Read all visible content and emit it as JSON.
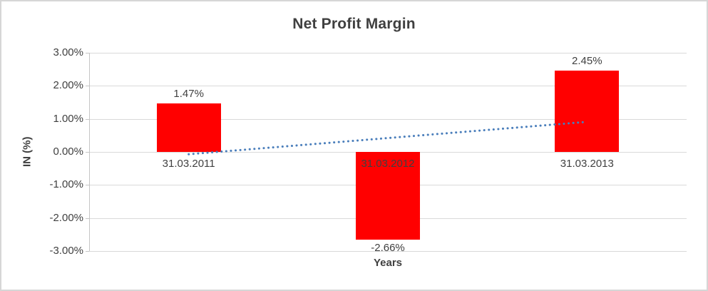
{
  "chart_data": {
    "type": "bar",
    "title": "Net Profit Margin",
    "xlabel": "Years",
    "ylabel": "IN (%)",
    "categories": [
      "31.03.2011",
      "31.03.2012",
      "31.03.2013"
    ],
    "values": [
      1.47,
      -2.66,
      2.45
    ],
    "data_labels": [
      "1.47%",
      "-2.66%",
      "2.45%"
    ],
    "ylim": [
      -3,
      3
    ],
    "ytick_step": 1,
    "ytick_labels": [
      "3.00%",
      "2.00%",
      "1.00%",
      "0.00%",
      "-1.00%",
      "-2.00%",
      "-3.00%"
    ],
    "grid": true,
    "legend": "none",
    "bar_color": "#ff0000",
    "grid_color": "#d9d9d9",
    "text_color": "#404040",
    "trendline": {
      "type": "linear",
      "style": "dotted",
      "color": "#4a7ebb",
      "start_value": -0.07,
      "end_value": 0.91
    }
  }
}
